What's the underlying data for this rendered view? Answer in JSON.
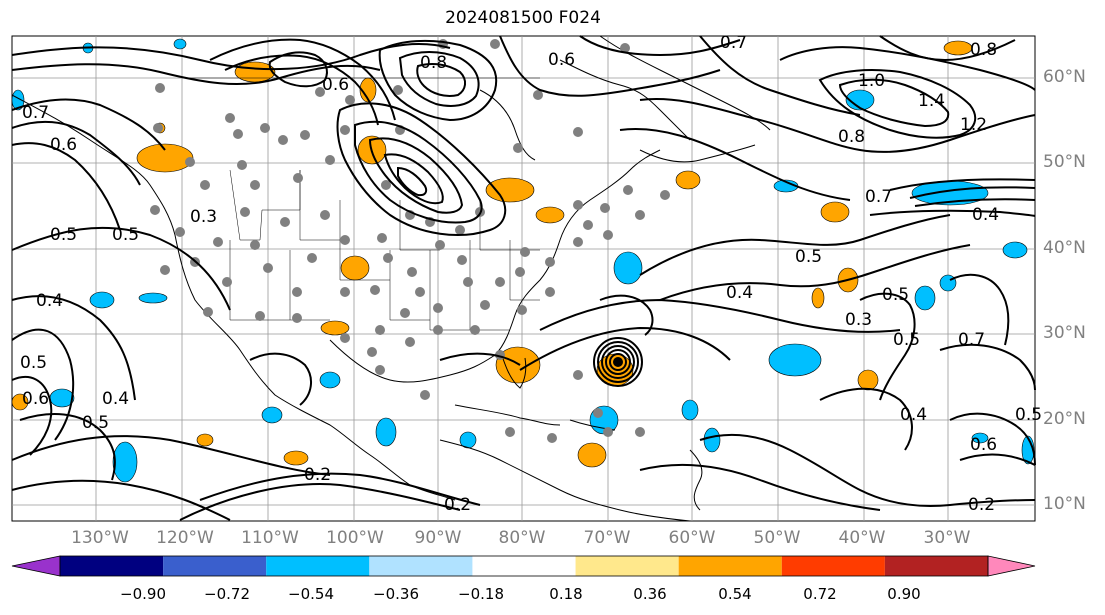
{
  "title": "2024081500 F024",
  "lon_labels": [
    "130°W",
    "120°W",
    "110°W",
    "100°W",
    "90°W",
    "80°W",
    "70°W",
    "60°W",
    "50°W",
    "40°W",
    "30°W"
  ],
  "lat_labels": [
    "60°N",
    "50°N",
    "40°N",
    "30°N",
    "20°N",
    "10°N"
  ],
  "colorbar": {
    "colors": [
      "#9932cc",
      "#000080",
      "#3a5fcd",
      "#00bfff",
      "#b0e2ff",
      "#ffffff",
      "#ffe88c",
      "#ffa500",
      "#ff3c00",
      "#b22222",
      "#ff88bb"
    ],
    "ticks": [
      "−0.90",
      "−0.72",
      "−0.54",
      "−0.36",
      "−0.18",
      "0.18",
      "0.36",
      "0.54",
      "0.72",
      "0.90"
    ]
  },
  "contour_labels": [
    "0.8",
    "0.6",
    "0.7",
    "0.6",
    "0.8",
    "1.0",
    "1.4",
    "1.2",
    "0.8",
    "0.7",
    "0.4",
    "0.5",
    "0.5",
    "0.4",
    "0.5",
    "0.3",
    "0.5",
    "0.5",
    "0.4",
    "0.3",
    "0.2",
    "0.2",
    "0.2",
    "0.6",
    "0.5",
    "0.4",
    "0.7",
    "0.6",
    "0.7",
    "0.5",
    "0.4",
    "0.6",
    "0.5"
  ],
  "map_features": [
    "coastlines",
    "state-borders",
    "grid",
    "contours",
    "shaded-anomaly",
    "station-dots",
    "hurricane-vortex"
  ]
}
